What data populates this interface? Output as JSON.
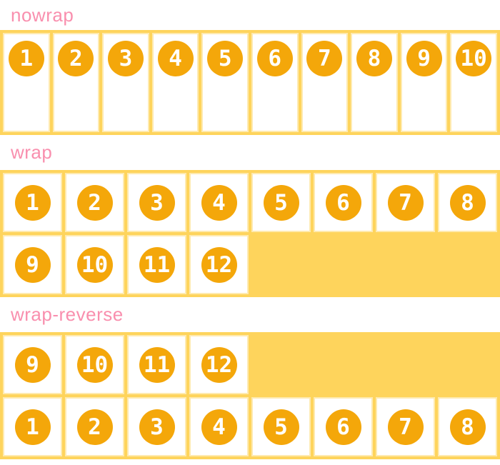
{
  "colors": {
    "label_pink": "#f98fae",
    "container_gold": "#fed45c",
    "item_border_pale_yellow": "#feeab0",
    "circle_orange": "#f4a70a",
    "number_white": "#ffffff"
  },
  "sections": [
    {
      "label": "nowrap",
      "wrap_mode": "nowrap",
      "items": [
        "1",
        "2",
        "3",
        "4",
        "5",
        "6",
        "7",
        "8",
        "9",
        "10"
      ]
    },
    {
      "label": "wrap",
      "wrap_mode": "wrap",
      "items": [
        "1",
        "2",
        "3",
        "4",
        "5",
        "6",
        "7",
        "8",
        "9",
        "10",
        "11",
        "12"
      ]
    },
    {
      "label": "wrap-reverse",
      "wrap_mode": "wrap-reverse",
      "items": [
        "1",
        "2",
        "3",
        "4",
        "5",
        "6",
        "7",
        "8",
        "9",
        "10",
        "11",
        "12"
      ]
    }
  ]
}
